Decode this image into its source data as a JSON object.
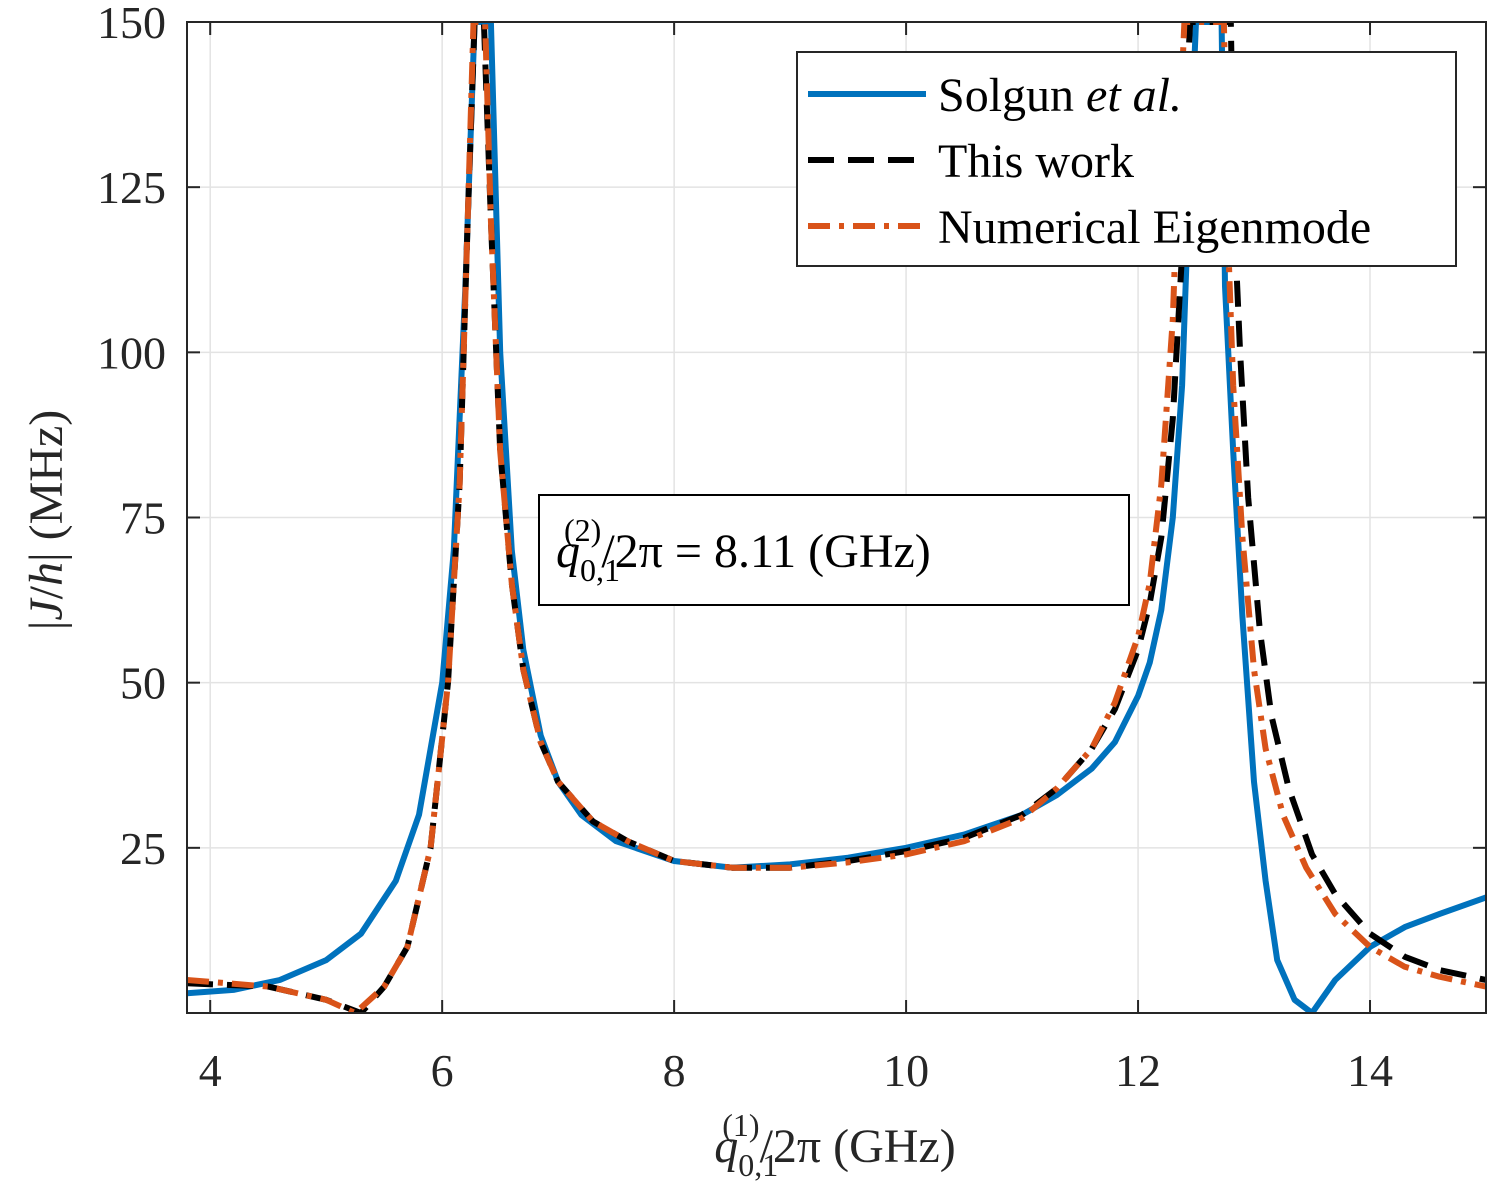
{
  "chart_data": {
    "type": "line",
    "title": "",
    "xlabel": {
      "var": "q",
      "sub": "0,1",
      "sup": "(1)",
      "rest": "/2π (GHz)"
    },
    "ylabel": {
      "pre": "|",
      "var": "J",
      "mid": "/",
      "var2": "h",
      "post": "| (MHz)"
    },
    "xlim": [
      3.8,
      15
    ],
    "ylim": [
      0,
      150
    ],
    "xticks": [
      4,
      6,
      8,
      10,
      12,
      14
    ],
    "yticks": [
      25,
      50,
      75,
      100,
      125,
      150
    ],
    "xtick_labels": [
      "4",
      "6",
      "8",
      "10",
      "12",
      "14"
    ],
    "ytick_labels": [
      "25",
      "50",
      "75",
      "100",
      "125",
      "150"
    ],
    "grid": true,
    "legend_position": "top-right",
    "legend": [
      {
        "name": "Solgun ",
        "name_italic": "et al.",
        "color": "#0072BD",
        "style": "solid"
      },
      {
        "name": "This work",
        "name_italic": "",
        "color": "#000000",
        "style": "dashed"
      },
      {
        "name": "Numerical Eigenmode",
        "name_italic": "",
        "color": "#D95319",
        "style": "dashdot"
      }
    ],
    "annotation": {
      "var": "q",
      "sub": "0,1",
      "sup": "(2)",
      "rest": "/2π = 8.11 (GHz)"
    },
    "series": [
      {
        "name": "Solgun et al.",
        "color": "#0072BD",
        "style": "solid",
        "x": [
          3.8,
          4.2,
          4.6,
          5.0,
          5.3,
          5.6,
          5.8,
          6.0,
          6.1,
          6.2,
          6.28,
          6.34,
          6.42,
          6.5,
          6.6,
          6.7,
          6.85,
          7.0,
          7.2,
          7.5,
          8.0,
          8.5,
          9.0,
          9.5,
          10.0,
          10.5,
          11.0,
          11.3,
          11.6,
          11.8,
          12.0,
          12.1,
          12.2,
          12.3,
          12.38,
          12.44,
          12.5,
          12.53,
          12.72,
          12.75,
          12.82,
          12.9,
          13.0,
          13.1,
          13.2,
          13.35,
          13.5,
          13.7,
          14.0,
          14.3,
          14.6,
          15.0
        ],
        "y": [
          3,
          3.5,
          5,
          8,
          12,
          20,
          30,
          50,
          70,
          110,
          150,
          150,
          150,
          100,
          70,
          55,
          42,
          35,
          30,
          26,
          23,
          22,
          22.5,
          23.5,
          25,
          27,
          30,
          33,
          37,
          41,
          48,
          53,
          61,
          75,
          95,
          125,
          150,
          150,
          150,
          110,
          85,
          60,
          35,
          20,
          8,
          2,
          0,
          5,
          10,
          13,
          15,
          17.5
        ]
      },
      {
        "name": "This work",
        "color": "#000000",
        "style": "dashed",
        "x": [
          3.8,
          4.5,
          5.0,
          5.3,
          5.5,
          5.7,
          5.9,
          6.05,
          6.15,
          6.22,
          6.28,
          6.31,
          6.36,
          6.42,
          6.5,
          6.6,
          6.7,
          6.85,
          7.0,
          7.3,
          7.6,
          8.0,
          8.5,
          9.0,
          9.5,
          10.0,
          10.5,
          11.0,
          11.3,
          11.6,
          11.8,
          12.0,
          12.1,
          12.2,
          12.3,
          12.38,
          12.42,
          12.45,
          12.8,
          12.83,
          12.88,
          12.95,
          13.05,
          13.15,
          13.3,
          13.5,
          13.7,
          14.0,
          14.3,
          14.6,
          15.0
        ],
        "y": [
          4.5,
          4,
          2,
          0,
          4,
          10,
          25,
          50,
          80,
          120,
          150,
          150,
          150,
          120,
          85,
          65,
          52,
          41,
          35,
          29,
          26,
          23,
          22,
          22,
          23,
          24.5,
          26.5,
          30,
          34,
          40,
          46,
          55,
          62,
          72,
          90,
          115,
          140,
          150,
          150,
          120,
          100,
          78,
          58,
          45,
          34,
          24,
          18,
          12,
          8.5,
          6.5,
          5
        ]
      },
      {
        "name": "Numerical Eigenmode",
        "color": "#D95319",
        "style": "dashdot",
        "x": [
          3.8,
          4.5,
          5.0,
          5.25,
          5.5,
          5.7,
          5.9,
          6.05,
          6.15,
          6.22,
          6.27,
          6.3,
          6.37,
          6.42,
          6.5,
          6.6,
          6.7,
          6.85,
          7.0,
          7.3,
          7.6,
          8.0,
          8.5,
          9.0,
          9.5,
          10.0,
          10.5,
          11.0,
          11.3,
          11.6,
          11.8,
          12.0,
          12.1,
          12.2,
          12.3,
          12.35,
          12.4,
          12.74,
          12.77,
          12.82,
          12.9,
          13.0,
          13.1,
          13.25,
          13.45,
          13.7,
          14.0,
          14.3,
          14.6,
          15.0
        ],
        "y": [
          5,
          4,
          2,
          0,
          4,
          10,
          25,
          50,
          80,
          120,
          150,
          150,
          150,
          120,
          85,
          65,
          52,
          41,
          35,
          29,
          26,
          23,
          22,
          22,
          22.8,
          24,
          26,
          29.5,
          34,
          40,
          47,
          57,
          65,
          80,
          105,
          130,
          150,
          150,
          120,
          95,
          72,
          52,
          40,
          30,
          22,
          15,
          10,
          7,
          5.5,
          4
        ]
      }
    ]
  }
}
